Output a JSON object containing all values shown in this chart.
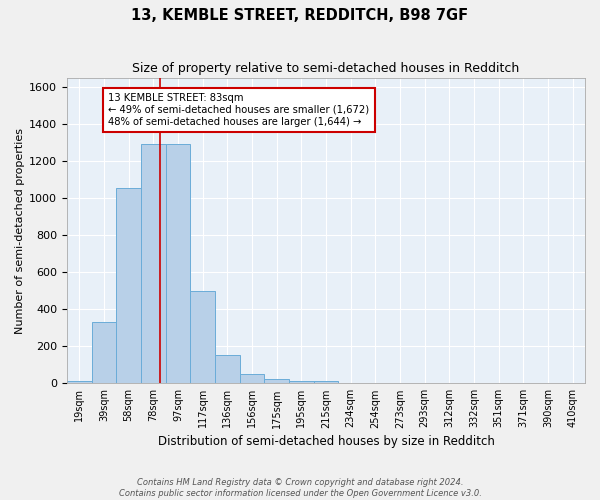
{
  "title": "13, KEMBLE STREET, REDDITCH, B98 7GF",
  "subtitle": "Size of property relative to semi-detached houses in Redditch",
  "xlabel": "Distribution of semi-detached houses by size in Redditch",
  "ylabel": "Number of semi-detached properties",
  "footnote1": "Contains HM Land Registry data © Crown copyright and database right 2024.",
  "footnote2": "Contains public sector information licensed under the Open Government Licence v3.0.",
  "bar_labels": [
    "19sqm",
    "39sqm",
    "58sqm",
    "78sqm",
    "97sqm",
    "117sqm",
    "136sqm",
    "156sqm",
    "175sqm",
    "195sqm",
    "215sqm",
    "234sqm",
    "254sqm",
    "273sqm",
    "293sqm",
    "312sqm",
    "332sqm",
    "351sqm",
    "371sqm",
    "390sqm",
    "410sqm"
  ],
  "bar_values": [
    15,
    330,
    1055,
    1295,
    1295,
    500,
    155,
    50,
    25,
    15,
    15,
    0,
    0,
    0,
    0,
    0,
    0,
    0,
    0,
    0,
    0
  ],
  "bar_color": "#b8d0e8",
  "bar_edge_color": "#6aacd8",
  "background_color": "#e8f0f8",
  "grid_color": "#ffffff",
  "property_line_color": "#cc0000",
  "annotation_text": "13 KEMBLE STREET: 83sqm\n← 49% of semi-detached houses are smaller (1,672)\n48% of semi-detached houses are larger (1,644) →",
  "annotation_box_color": "#ffffff",
  "annotation_box_edge": "#cc0000",
  "ylim": [
    0,
    1650
  ],
  "fig_bg": "#f0f0f0"
}
